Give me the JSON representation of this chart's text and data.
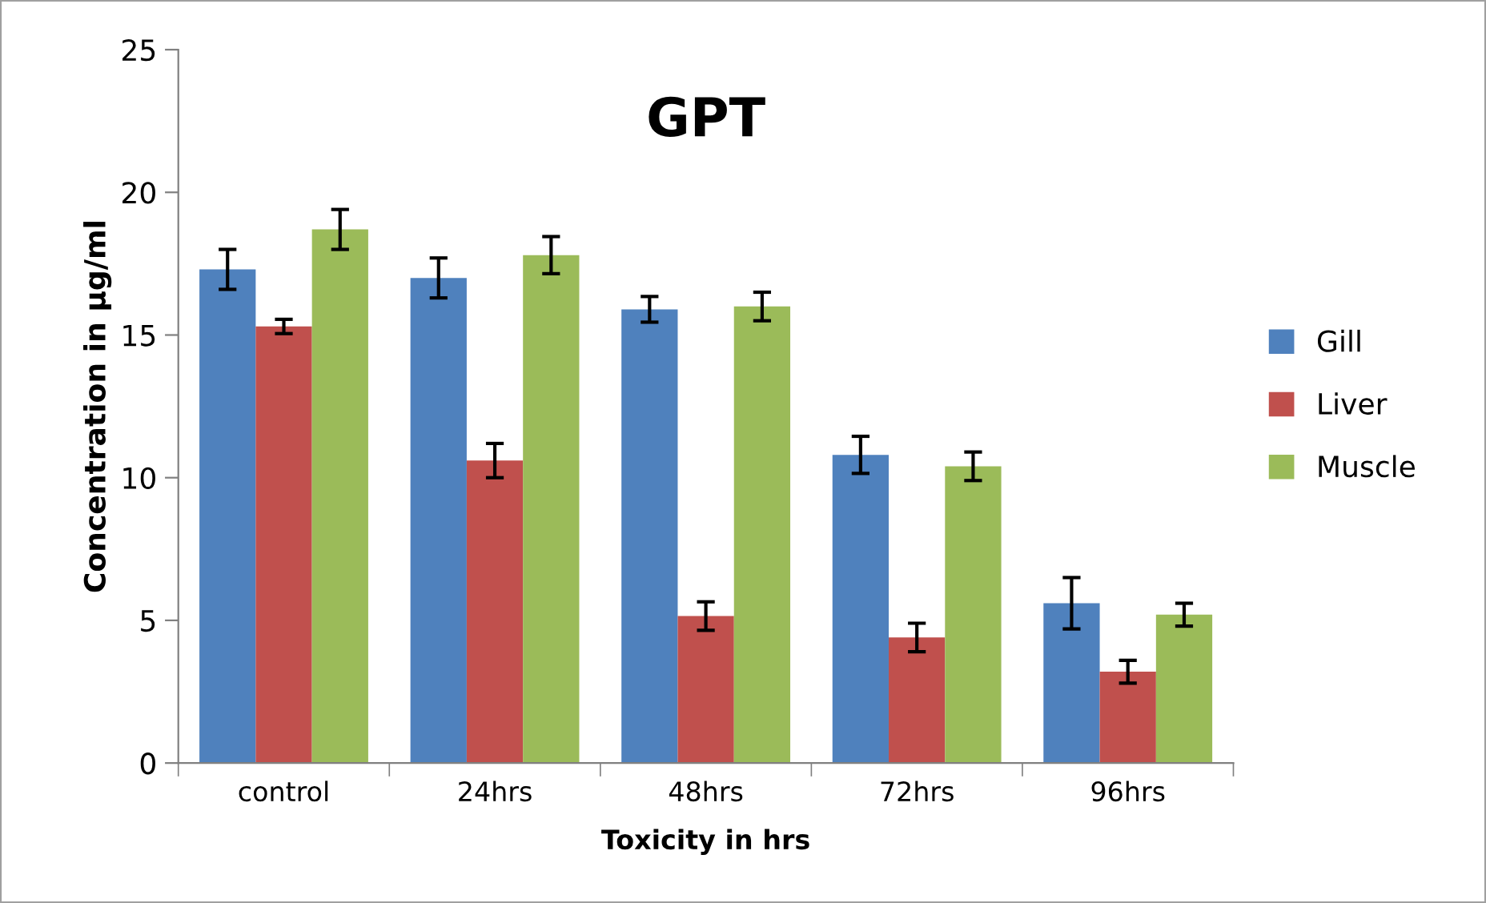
{
  "chart_data": {
    "type": "bar",
    "title": "GPT",
    "xlabel": "Toxicity in hrs",
    "ylabel": "Concentration in µg/ml",
    "categories": [
      "control",
      "24hrs",
      "48hrs",
      "72hrs",
      "96hrs"
    ],
    "series": [
      {
        "name": "Gill",
        "color": "#4f81bd",
        "values": [
          17.3,
          17.0,
          15.9,
          10.8,
          5.6
        ],
        "errors": [
          0.7,
          0.7,
          0.45,
          0.65,
          0.9
        ]
      },
      {
        "name": "Liver",
        "color": "#c0504d",
        "values": [
          15.3,
          10.6,
          5.15,
          4.4,
          3.2
        ],
        "errors": [
          0.25,
          0.6,
          0.5,
          0.5,
          0.4
        ]
      },
      {
        "name": "Muscle",
        "color": "#9bbb59",
        "values": [
          18.7,
          17.8,
          16.0,
          10.4,
          5.2
        ],
        "errors": [
          0.7,
          0.65,
          0.5,
          0.5,
          0.4
        ]
      }
    ],
    "ylim": [
      0,
      25
    ],
    "yticks": [
      0,
      5,
      10,
      15,
      20,
      25
    ],
    "grid": false,
    "legend": "right"
  }
}
